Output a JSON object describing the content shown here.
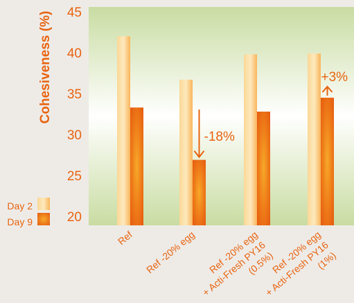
{
  "chart_data": {
    "type": "bar",
    "ylabel": "Cohesiveness (%)",
    "ylim": [
      20,
      45
    ],
    "yticks": [
      20,
      25,
      30,
      35,
      40,
      45
    ],
    "categories": [
      [
        "Ref"
      ],
      [
        "Ref -20% egg"
      ],
      [
        "Ref -20% egg",
        "+ Acti-Fresh PY16",
        "(0.5%)"
      ],
      [
        "Ref -20% egg",
        "+ Acti-Fresh PY16",
        "(1%)"
      ]
    ],
    "series": [
      {
        "name": "Day 2",
        "values": [
          42.0,
          36.7,
          39.8,
          39.9
        ],
        "color": "#f9b75a"
      },
      {
        "name": "Day 9",
        "values": [
          33.3,
          26.9,
          32.8,
          34.5
        ],
        "color": "#ea6512"
      }
    ],
    "annotations": [
      {
        "text": "-18%",
        "category": 1,
        "direction": "down"
      },
      {
        "text": "+3%",
        "category": 3,
        "direction": "up"
      }
    ],
    "legend_position": "bottom-left"
  }
}
